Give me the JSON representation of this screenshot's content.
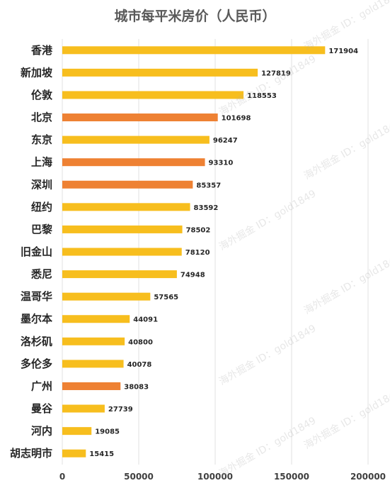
{
  "chart_data": {
    "type": "bar",
    "orientation": "horizontal",
    "title": "城市每平米房价（人民币）",
    "categories": [
      "香港",
      "新加坡",
      "伦敦",
      "北京",
      "东京",
      "上海",
      "深圳",
      "纽约",
      "巴黎",
      "旧金山",
      "悉尼",
      "温哥华",
      "墨尔本",
      "洛杉矶",
      "多伦多",
      "广州",
      "曼谷",
      "河内",
      "胡志明市"
    ],
    "values": [
      171904,
      127819,
      118553,
      101698,
      96247,
      93310,
      85357,
      83592,
      78502,
      78120,
      74948,
      57565,
      44091,
      40800,
      40078,
      38083,
      27739,
      19085,
      15415
    ],
    "highlighted": [
      "北京",
      "上海",
      "深圳",
      "广州"
    ],
    "xlim": [
      0,
      200000
    ],
    "xticks": [
      0,
      50000,
      100000,
      150000,
      200000
    ],
    "grid": true,
    "colors": {
      "default": "#F7BE1E",
      "highlight": "#EE8133"
    }
  },
  "watermark": {
    "name": "海外掘金",
    "id": "ID：gold1849"
  }
}
